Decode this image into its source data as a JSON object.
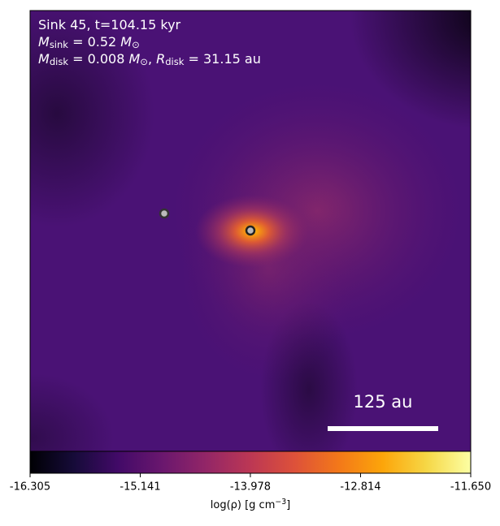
{
  "chart_data": {
    "type": "image",
    "annotations": [
      [
        {
          "text": "Sink 45, t=104.15 kyr"
        }
      ],
      [
        {
          "text": "M"
        },
        {
          "text": "sink",
          "sub": true
        },
        {
          "text": " = 0.52 "
        },
        {
          "text": "M"
        },
        {
          "text": "⊙",
          "sub": true
        }
      ],
      [
        {
          "text": "M"
        },
        {
          "text": "disk",
          "sub": true
        },
        {
          "text": " = 0.008 "
        },
        {
          "text": "M"
        },
        {
          "text": "⊙",
          "sub": true
        },
        {
          "text": ", "
        },
        {
          "text": "R"
        },
        {
          "text": "disk",
          "sub": true
        },
        {
          "text": " = 31.15 au"
        }
      ]
    ],
    "scale_bar_label": "125 au",
    "colorbar": {
      "lim": [
        -16.305,
        -11.65
      ],
      "ticks": [
        -16.305,
        -15.141,
        -13.978,
        -12.814,
        {
          "value": -11.65,
          "label": "-11.650"
        }
      ],
      "label": [
        {
          "text": "log(ρ) [g cm"
        },
        {
          "text": "−3",
          "sup": true
        },
        {
          "text": "]"
        }
      ]
    }
  }
}
